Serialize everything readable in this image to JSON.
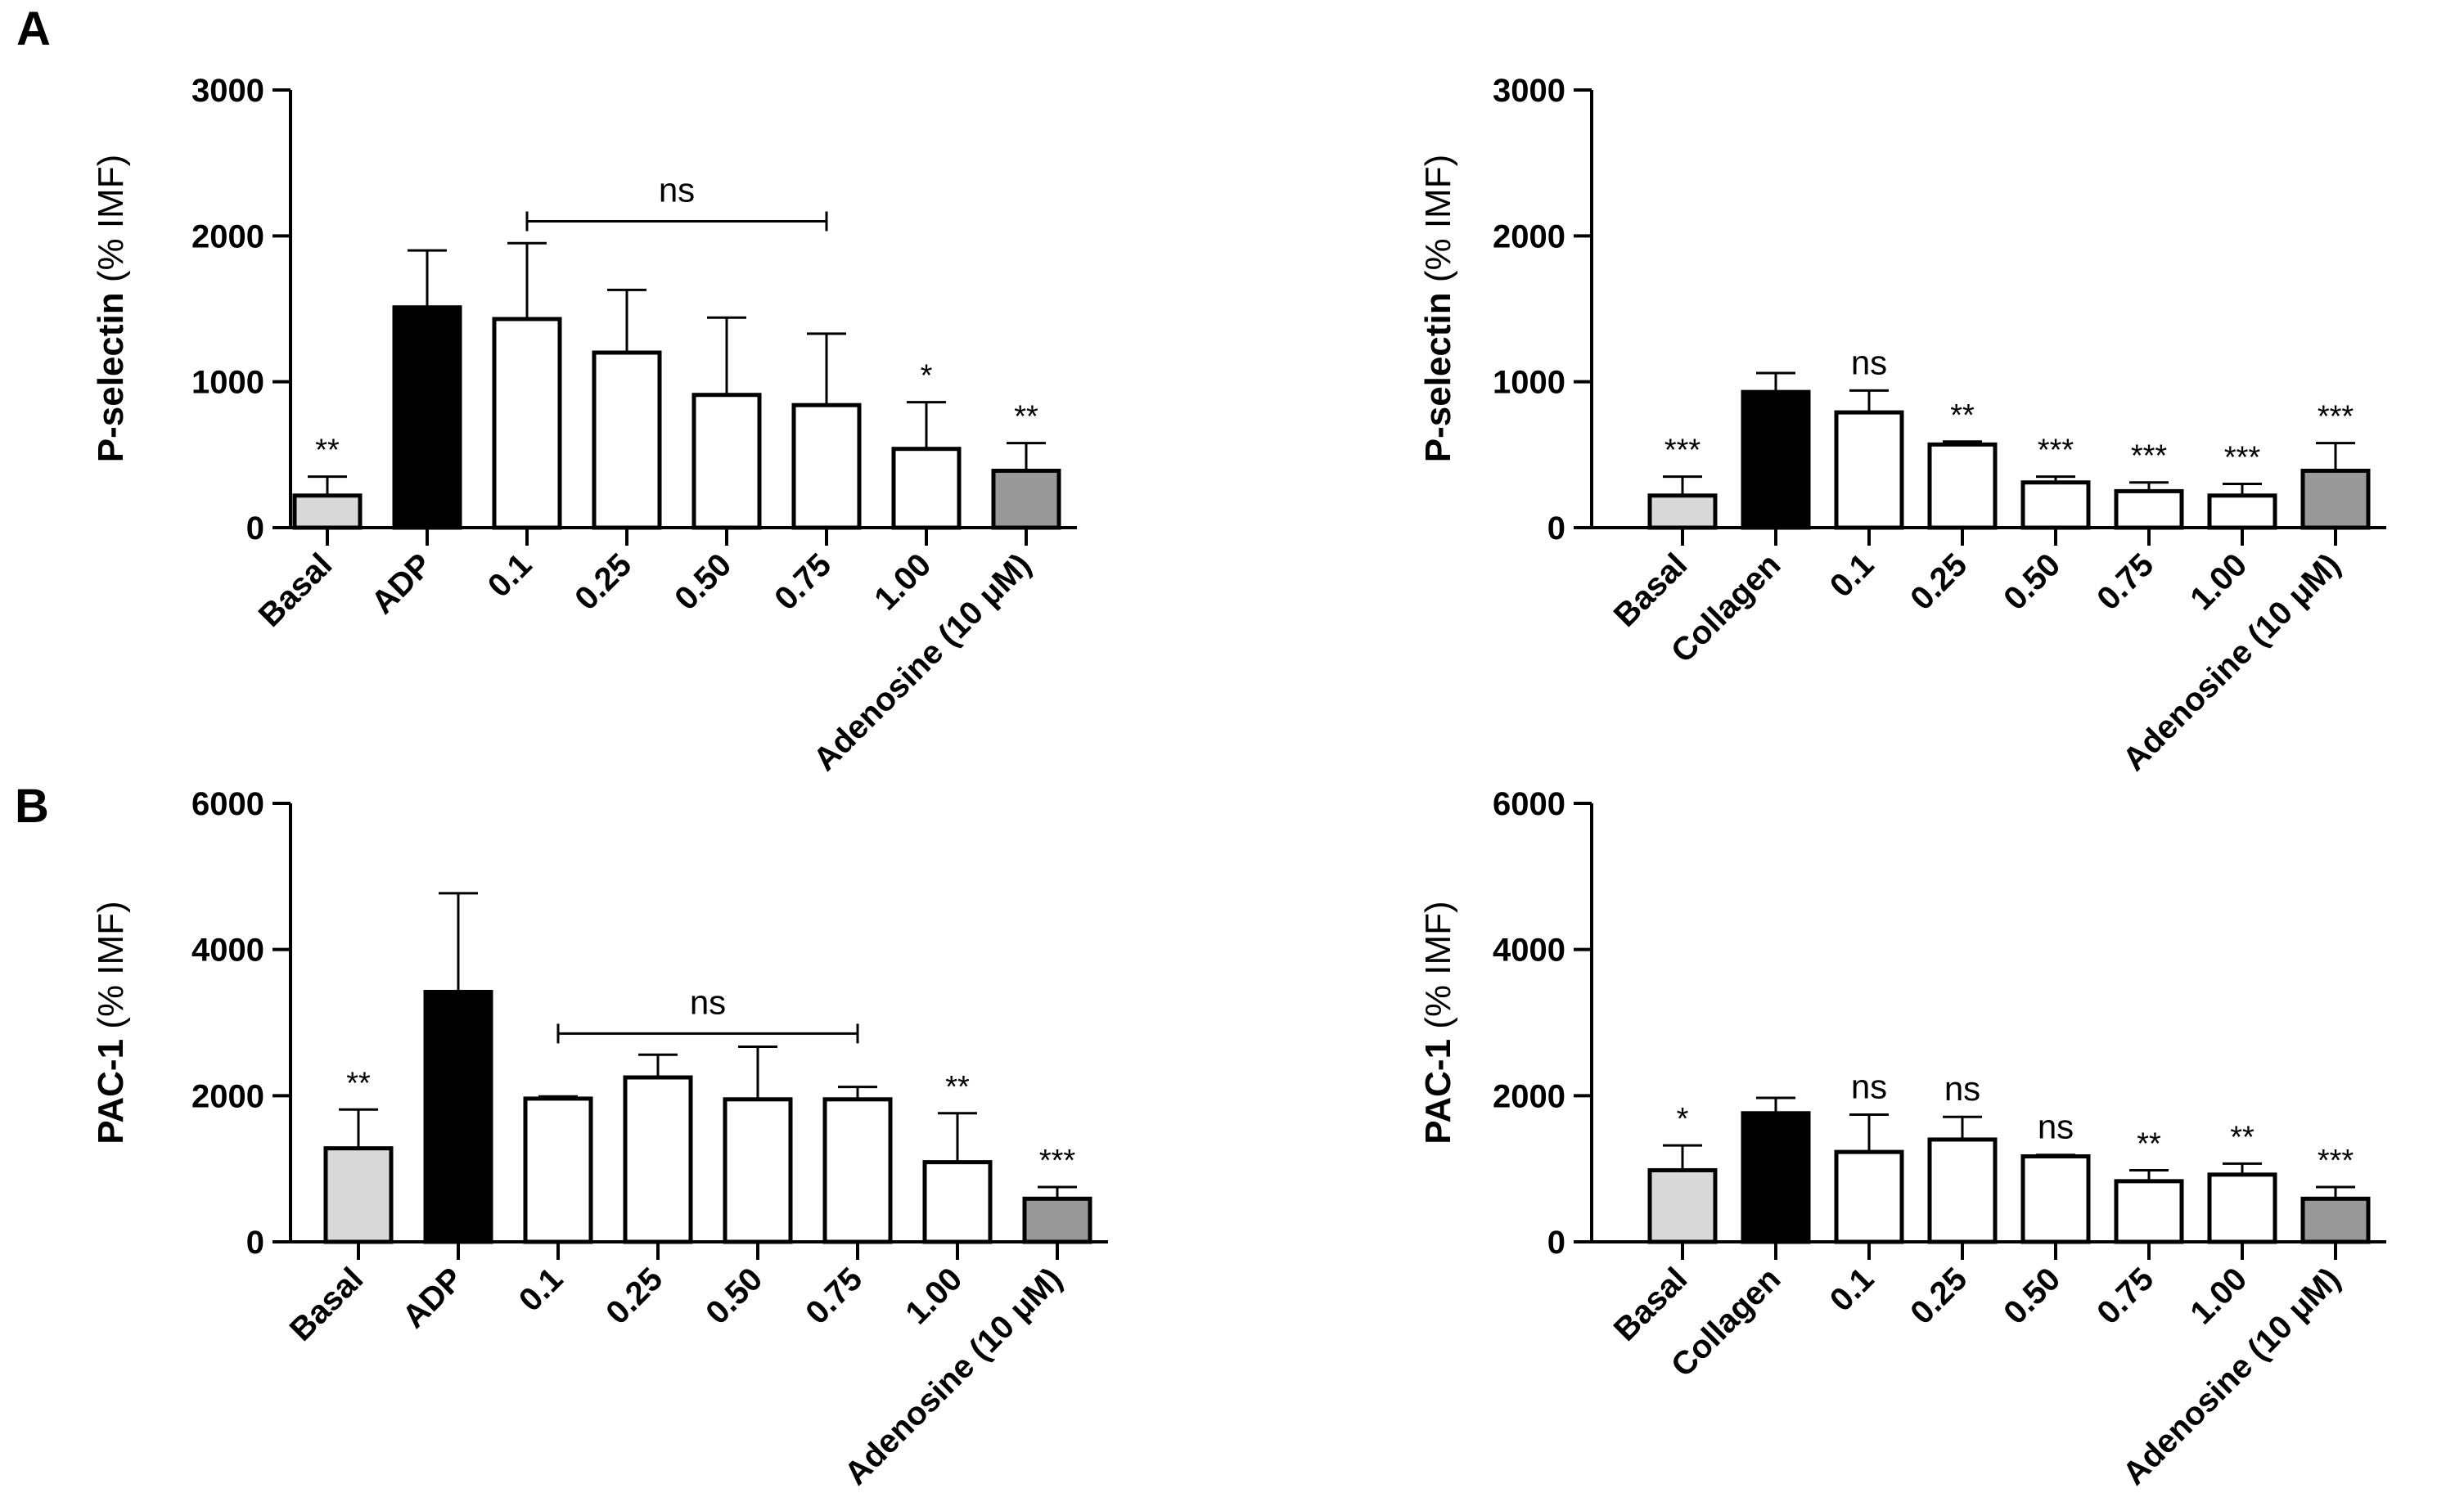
{
  "panel_labels": [
    "A",
    "B"
  ],
  "chart_data": [
    {
      "type": "bar",
      "panel": "A",
      "ylabel_main": "P-selectin",
      "ylabel_unit": " (% IMF)",
      "ylim": [
        0,
        3000
      ],
      "yticks": [
        0,
        1000,
        2000,
        3000
      ],
      "categories": [
        "Basal",
        "ADP",
        "0.1",
        "0.25",
        "0.50",
        "0.75",
        "1.00",
        "Adenosine (10 μM)"
      ],
      "values": [
        220,
        1510,
        1430,
        1200,
        910,
        840,
        540,
        390
      ],
      "errors": [
        130,
        390,
        520,
        430,
        530,
        490,
        320,
        190
      ],
      "fills": [
        "#d9d9d9",
        "#000000",
        "#ffffff",
        "#ffffff",
        "#ffffff",
        "#ffffff",
        "#ffffff",
        "#999999"
      ],
      "significance": [
        "**",
        "",
        "",
        "",
        "",
        "",
        "*",
        "**"
      ],
      "bracket": {
        "from": 2,
        "to": 5,
        "label": "ns",
        "y": 2100
      }
    },
    {
      "type": "bar",
      "panel": "A",
      "ylabel_main": "P-selectin",
      "ylabel_unit": " (% IMF)",
      "ylim": [
        0,
        3000
      ],
      "yticks": [
        0,
        1000,
        2000,
        3000
      ],
      "categories": [
        "Basal",
        "Collagen",
        "0.1",
        "0.25",
        "0.50",
        "0.75",
        "1.00",
        "Adenosine (10 μM)"
      ],
      "values": [
        220,
        930,
        790,
        570,
        310,
        250,
        220,
        390
      ],
      "errors": [
        130,
        130,
        150,
        20,
        40,
        60,
        80,
        190
      ],
      "fills": [
        "#d9d9d9",
        "#000000",
        "#ffffff",
        "#ffffff",
        "#ffffff",
        "#ffffff",
        "#ffffff",
        "#999999"
      ],
      "significance": [
        "***",
        "",
        "ns",
        "**",
        "***",
        "***",
        "***",
        "***"
      ],
      "bracket": null
    },
    {
      "type": "bar",
      "panel": "B",
      "ylabel_main": "PAC-1",
      "ylabel_unit": " (% IMF)",
      "ylim": [
        0,
        6000
      ],
      "yticks": [
        0,
        2000,
        4000,
        6000
      ],
      "categories": [
        "Basal",
        "ADP",
        "0.1",
        "0.25",
        "0.50",
        "0.75",
        "1.00",
        "Adenosine (10 μM)"
      ],
      "values": [
        1280,
        3420,
        1960,
        2250,
        1950,
        1950,
        1090,
        590
      ],
      "errors": [
        530,
        1350,
        30,
        310,
        720,
        170,
        670,
        160
      ],
      "fills": [
        "#d9d9d9",
        "#000000",
        "#ffffff",
        "#ffffff",
        "#ffffff",
        "#ffffff",
        "#ffffff",
        "#999999"
      ],
      "significance": [
        "**",
        "",
        "",
        "",
        "",
        "",
        "**",
        "***"
      ],
      "bracket": {
        "from": 2,
        "to": 5,
        "label": "ns",
        "y": 2850
      }
    },
    {
      "type": "bar",
      "panel": "B",
      "ylabel_main": "PAC-1",
      "ylabel_unit": " (% IMF)",
      "ylim": [
        0,
        6000
      ],
      "yticks": [
        0,
        2000,
        4000,
        6000
      ],
      "categories": [
        "Basal",
        "Collagen",
        "0.1",
        "0.25",
        "0.50",
        "0.75",
        "1.00",
        "Adenosine (10 μM)"
      ],
      "values": [
        980,
        1760,
        1230,
        1400,
        1170,
        830,
        920,
        590
      ],
      "errors": [
        340,
        210,
        510,
        310,
        20,
        150,
        150,
        160
      ],
      "fills": [
        "#d9d9d9",
        "#000000",
        "#ffffff",
        "#ffffff",
        "#ffffff",
        "#ffffff",
        "#ffffff",
        "#999999"
      ],
      "significance": [
        "*",
        "",
        "ns",
        "ns",
        "ns",
        "**",
        "**",
        "***"
      ],
      "bracket": null
    }
  ]
}
